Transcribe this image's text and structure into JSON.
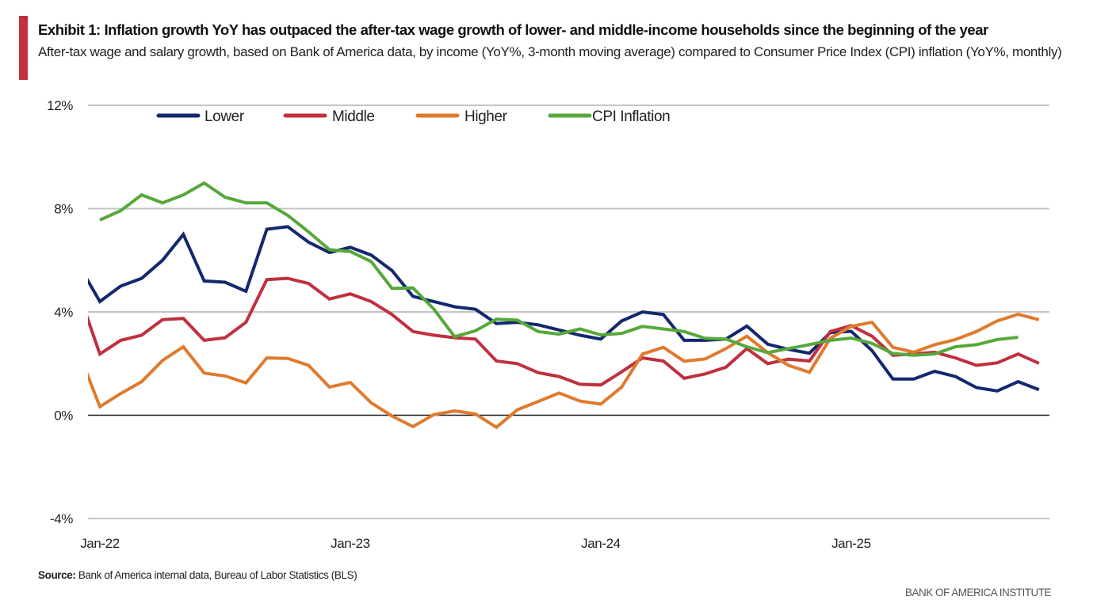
{
  "header": {
    "title": "Exhibit 1: Inflation growth YoY has outpaced the after-tax wage growth of lower- and middle-income households since the beginning of the year",
    "subtitle": "After-tax wage and salary growth, based on Bank of America data, by income (YoY%, 3-month moving average) compared to Consumer Price Index (CPI) inflation (YoY%, monthly)",
    "accent_color": "#C0303E"
  },
  "footer": {
    "source_label": "Source:",
    "source_text": " Bank of America internal data, Bureau of Labor Statistics (BLS)",
    "brand": "BANK OF AMERICA INSTITUTE"
  },
  "chart_data": {
    "type": "line",
    "title": "Exhibit 1: Inflation growth YoY has outpaced the after-tax wage growth of lower- and middle-income households since the beginning of the year",
    "xlabel": "",
    "ylabel": "YoY%",
    "ylim": [
      -4,
      12
    ],
    "yticks": [
      -4,
      0,
      4,
      8,
      12
    ],
    "ytick_labels": [
      "-4%",
      "0%",
      "4%",
      "8%",
      "12%"
    ],
    "xtick_labels": [
      "Jan-22",
      "Jan-23",
      "Jan-24",
      "Jan-25"
    ],
    "xtick_months": [
      0,
      12,
      24,
      36
    ],
    "x_start_month": -0.5,
    "x_end_month": 45.3,
    "grid": true,
    "legend": "top",
    "x_months_note": "month index 0 = Jan-22; index -1 = Dec-21",
    "x": [
      "Dec-21",
      "Jan-22",
      "Feb-22",
      "Mar-22",
      "Apr-22",
      "May-22",
      "Jun-22",
      "Jul-22",
      "Aug-22",
      "Sep-22",
      "Oct-22",
      "Nov-22",
      "Dec-22",
      "Jan-23",
      "Feb-23",
      "Mar-23",
      "Apr-23",
      "May-23",
      "Jun-23",
      "Jul-23",
      "Aug-23",
      "Sep-23",
      "Oct-23",
      "Nov-23",
      "Dec-23",
      "Jan-24",
      "Feb-24",
      "Mar-24",
      "Apr-24",
      "May-24",
      "Jun-24",
      "Jul-24",
      "Aug-24",
      "Sep-24",
      "Oct-24",
      "Nov-24",
      "Dec-24",
      "Jan-25",
      "Feb-25",
      "Mar-25",
      "Apr-25",
      "May-25",
      "Jun-25",
      "Jul-25",
      "Aug-25",
      "Sep-25",
      "Oct-25"
    ],
    "series": [
      {
        "name": "Lower",
        "color": "#13286E",
        "values": [
          5.8,
          4.4,
          5.0,
          5.3,
          6.0,
          7.0,
          5.2,
          5.15,
          4.8,
          7.2,
          7.3,
          6.7,
          6.3,
          6.5,
          6.2,
          5.6,
          4.6,
          4.4,
          4.2,
          4.1,
          3.55,
          3.6,
          3.5,
          3.3,
          3.1,
          2.95,
          3.65,
          4.0,
          3.9,
          2.9,
          2.9,
          2.95,
          3.45,
          2.75,
          2.55,
          2.4,
          3.2,
          3.25,
          2.5,
          1.4,
          1.4,
          1.7,
          1.5,
          1.07,
          0.94,
          1.3,
          0.99
        ]
      },
      {
        "name": "Middle",
        "color": "#C0303E",
        "values": [
          4.7,
          2.37,
          2.9,
          3.1,
          3.7,
          3.75,
          2.9,
          3.0,
          3.6,
          5.25,
          5.3,
          5.1,
          4.5,
          4.7,
          4.4,
          3.9,
          3.24,
          3.1,
          3.0,
          2.95,
          2.1,
          2.0,
          1.65,
          1.5,
          1.2,
          1.17,
          1.68,
          2.22,
          2.1,
          1.43,
          1.6,
          1.86,
          2.58,
          2.0,
          2.17,
          2.1,
          3.24,
          3.47,
          3.06,
          2.32,
          2.37,
          2.44,
          2.22,
          1.93,
          2.03,
          2.37,
          2.01
        ]
      },
      {
        "name": "Higher",
        "color": "#E07A2E",
        "values": [
          2.4,
          0.33,
          0.84,
          1.3,
          2.12,
          2.65,
          1.63,
          1.52,
          1.25,
          2.22,
          2.2,
          1.93,
          1.09,
          1.27,
          0.48,
          -0.03,
          -0.44,
          0.02,
          0.17,
          0.05,
          -0.47,
          0.21,
          0.53,
          0.86,
          0.55,
          0.43,
          1.09,
          2.37,
          2.63,
          2.09,
          2.18,
          2.58,
          3.06,
          2.42,
          1.93,
          1.66,
          2.98,
          3.44,
          3.6,
          2.63,
          2.44,
          2.73,
          2.93,
          3.24,
          3.65,
          3.91,
          3.7
        ]
      },
      {
        "name": "CPI Inflation",
        "color": "#57A83A",
        "values": [
          null,
          7.56,
          7.92,
          8.53,
          8.22,
          8.53,
          8.99,
          8.44,
          8.22,
          8.22,
          7.74,
          7.1,
          6.41,
          6.34,
          5.95,
          4.91,
          4.93,
          4.11,
          3.04,
          3.27,
          3.72,
          3.68,
          3.24,
          3.14,
          3.34,
          3.11,
          3.17,
          3.44,
          3.34,
          3.24,
          2.98,
          2.95,
          2.65,
          2.42,
          2.58,
          2.73,
          2.9,
          2.99,
          2.78,
          2.39,
          2.32,
          2.37,
          2.65,
          2.73,
          2.93,
          3.02,
          null
        ]
      }
    ]
  }
}
